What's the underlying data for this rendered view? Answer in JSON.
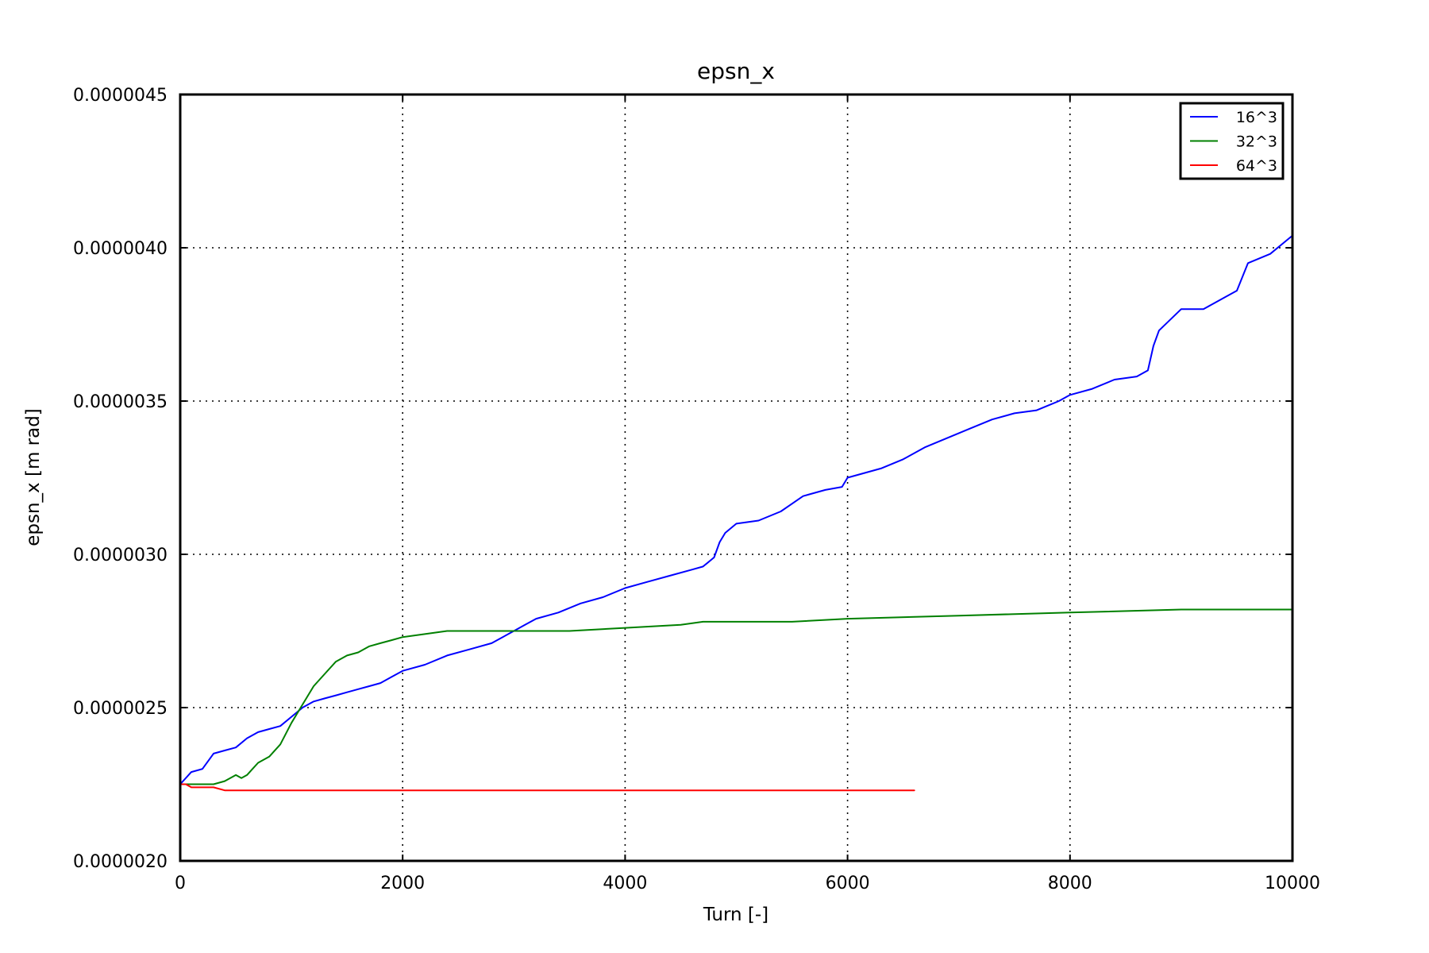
{
  "chart_data": {
    "type": "line",
    "title": "epsn_x",
    "xlabel": "Turn [-]",
    "ylabel": "epsn_x [m rad]",
    "xlim": [
      0,
      10000
    ],
    "ylim": [
      2e-06,
      4.5e-06
    ],
    "xticks": [
      0,
      2000,
      4000,
      6000,
      8000,
      10000
    ],
    "xtick_labels": [
      "0",
      "2000",
      "4000",
      "6000",
      "8000",
      "10000"
    ],
    "yticks": [
      2e-06,
      2.5e-06,
      3e-06,
      3.5e-06,
      4e-06,
      4.5e-06
    ],
    "ytick_labels": [
      "0.0000020",
      "0.0000025",
      "0.0000030",
      "0.0000035",
      "0.0000040",
      "0.0000045"
    ],
    "grid": true,
    "legend": "top-right",
    "series": [
      {
        "name": "16^3",
        "color": "#0000ff",
        "x": [
          0,
          100,
          200,
          300,
          400,
          500,
          600,
          700,
          800,
          900,
          1000,
          1100,
          1200,
          1300,
          1400,
          1500,
          1600,
          1700,
          1800,
          1900,
          2000,
          2200,
          2400,
          2600,
          2800,
          3000,
          3100,
          3200,
          3400,
          3600,
          3800,
          4000,
          4200,
          4400,
          4600,
          4700,
          4800,
          4850,
          4900,
          5000,
          5200,
          5400,
          5600,
          5800,
          5950,
          6000,
          6100,
          6300,
          6500,
          6700,
          6900,
          7100,
          7300,
          7500,
          7700,
          7900,
          8000,
          8200,
          8400,
          8600,
          8700,
          8750,
          8800,
          9000,
          9200,
          9400,
          9500,
          9600,
          9800,
          10000
        ],
        "values": [
          2.25e-06,
          2.29e-06,
          2.3e-06,
          2.35e-06,
          2.36e-06,
          2.37e-06,
          2.4e-06,
          2.42e-06,
          2.43e-06,
          2.44e-06,
          2.47e-06,
          2.5e-06,
          2.52e-06,
          2.53e-06,
          2.54e-06,
          2.55e-06,
          2.56e-06,
          2.57e-06,
          2.58e-06,
          2.6e-06,
          2.62e-06,
          2.64e-06,
          2.67e-06,
          2.69e-06,
          2.71e-06,
          2.75e-06,
          2.77e-06,
          2.79e-06,
          2.81e-06,
          2.84e-06,
          2.86e-06,
          2.89e-06,
          2.91e-06,
          2.93e-06,
          2.95e-06,
          2.96e-06,
          2.99e-06,
          3.04e-06,
          3.07e-06,
          3.1e-06,
          3.11e-06,
          3.14e-06,
          3.19e-06,
          3.21e-06,
          3.22e-06,
          3.25e-06,
          3.26e-06,
          3.28e-06,
          3.31e-06,
          3.35e-06,
          3.38e-06,
          3.41e-06,
          3.44e-06,
          3.46e-06,
          3.47e-06,
          3.5e-06,
          3.52e-06,
          3.54e-06,
          3.57e-06,
          3.58e-06,
          3.6e-06,
          3.68e-06,
          3.73e-06,
          3.8e-06,
          3.8e-06,
          3.84e-06,
          3.86e-06,
          3.95e-06,
          3.98e-06,
          4.04e-06
        ]
      },
      {
        "name": "32^3",
        "color": "#008000",
        "x": [
          0,
          100,
          200,
          300,
          400,
          500,
          550,
          600,
          650,
          700,
          800,
          900,
          1000,
          1100,
          1200,
          1300,
          1400,
          1500,
          1600,
          1700,
          1800,
          1900,
          2000,
          2200,
          2400,
          2600,
          2800,
          3000,
          3500,
          4000,
          4500,
          4700,
          5000,
          5500,
          6000,
          7000,
          8000,
          9000,
          10000
        ],
        "values": [
          2.25e-06,
          2.25e-06,
          2.25e-06,
          2.25e-06,
          2.26e-06,
          2.28e-06,
          2.27e-06,
          2.28e-06,
          2.3e-06,
          2.32e-06,
          2.34e-06,
          2.38e-06,
          2.45e-06,
          2.51e-06,
          2.57e-06,
          2.61e-06,
          2.65e-06,
          2.67e-06,
          2.68e-06,
          2.7e-06,
          2.71e-06,
          2.72e-06,
          2.73e-06,
          2.74e-06,
          2.75e-06,
          2.75e-06,
          2.75e-06,
          2.75e-06,
          2.75e-06,
          2.76e-06,
          2.77e-06,
          2.78e-06,
          2.78e-06,
          2.78e-06,
          2.79e-06,
          2.8e-06,
          2.81e-06,
          2.82e-06,
          2.82e-06
        ]
      },
      {
        "name": "64^3",
        "color": "#ff0000",
        "x": [
          0,
          50,
          100,
          200,
          300,
          400,
          500,
          600,
          700,
          800,
          1000,
          1500,
          2000,
          3000,
          4000,
          5000,
          6000,
          6600
        ],
        "values": [
          2.25e-06,
          2.25e-06,
          2.24e-06,
          2.24e-06,
          2.24e-06,
          2.23e-06,
          2.23e-06,
          2.23e-06,
          2.23e-06,
          2.23e-06,
          2.23e-06,
          2.23e-06,
          2.23e-06,
          2.23e-06,
          2.23e-06,
          2.23e-06,
          2.23e-06,
          2.23e-06
        ]
      }
    ]
  }
}
